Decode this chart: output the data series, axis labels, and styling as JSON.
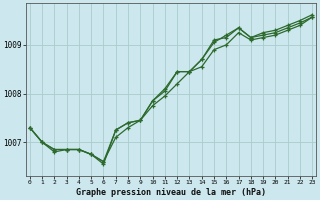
{
  "title": "Graphe pression niveau de la mer (hPa)",
  "background_color": "#cce8ee",
  "grid_color": "#aacccc",
  "line_color": "#2d6a2d",
  "x_ticks": [
    0,
    1,
    2,
    3,
    4,
    5,
    6,
    7,
    8,
    9,
    10,
    11,
    12,
    13,
    14,
    15,
    16,
    17,
    18,
    19,
    20,
    21,
    22,
    23
  ],
  "y_ticks": [
    1007,
    1008,
    1009
  ],
  "ylim": [
    1006.3,
    1009.85
  ],
  "xlim": [
    -0.3,
    23.3
  ],
  "figsize": [
    3.2,
    2.0
  ],
  "dpi": 100,
  "line1": [
    1007.3,
    1007.0,
    1006.8,
    1006.85,
    1006.85,
    1006.75,
    1006.55,
    1007.25,
    1007.4,
    1007.45,
    1007.85,
    1008.05,
    1008.45,
    1008.45,
    1008.7,
    1009.1,
    1009.15,
    1009.35,
    1009.15,
    1009.25,
    1009.3,
    1009.4,
    1009.5,
    1009.62
  ],
  "line2": [
    1007.3,
    1007.0,
    1006.85,
    1006.85,
    1006.85,
    1006.75,
    1006.6,
    1007.25,
    1007.4,
    1007.45,
    1007.85,
    1008.1,
    1008.45,
    1008.45,
    1008.7,
    1009.05,
    1009.2,
    1009.35,
    1009.15,
    1009.2,
    1009.25,
    1009.35,
    1009.45,
    1009.57
  ],
  "line3": [
    1007.3,
    1007.0,
    1006.85,
    1006.85,
    1006.85,
    1006.75,
    1006.6,
    1007.1,
    1007.3,
    1007.45,
    1007.75,
    1007.95,
    1008.2,
    1008.45,
    1008.55,
    1008.9,
    1009.0,
    1009.25,
    1009.1,
    1009.15,
    1009.2,
    1009.3,
    1009.4,
    1009.57
  ]
}
